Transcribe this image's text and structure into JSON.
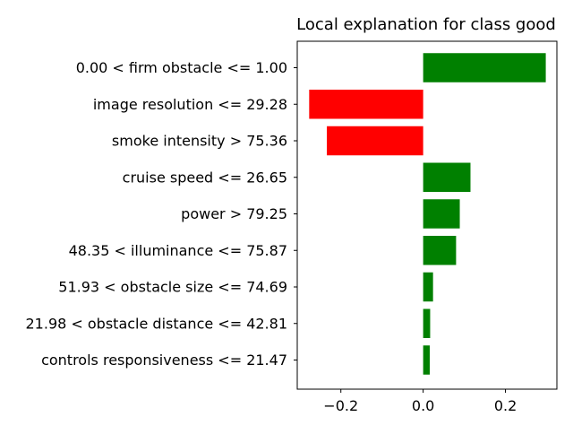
{
  "chart_data": {
    "type": "bar",
    "orientation": "horizontal",
    "title": "Local explanation for class good",
    "xlabel": "",
    "ylabel": "",
    "categories": [
      "0.00 < firm obstacle <= 1.00",
      "image resolution <= 29.28",
      "smoke intensity > 75.36",
      "cruise speed <= 26.65",
      "power > 79.25",
      "48.35 < illuminance <= 75.87",
      "51.93 < obstacle size <= 74.69",
      "21.98 < obstacle distance <= 42.81",
      "controls responsiveness <= 21.47"
    ],
    "values": [
      0.298,
      -0.277,
      -0.234,
      0.115,
      0.089,
      0.08,
      0.024,
      0.017,
      0.016
    ],
    "xlim": [
      -0.306,
      0.325
    ],
    "xticks": [
      -0.2,
      0.0,
      0.2
    ],
    "xtick_labels": [
      "−0.2",
      "0.0",
      "0.2"
    ],
    "grid": false,
    "colors": {
      "positive": "#008000",
      "negative": "#ff0000",
      "axis": "#000000",
      "background": "#ffffff"
    }
  }
}
